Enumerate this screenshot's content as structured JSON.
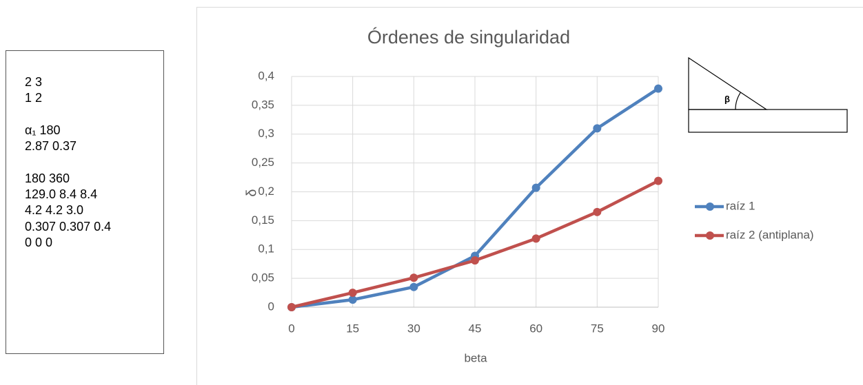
{
  "text_box": {
    "lines": [
      "2 3",
      "1 2",
      "α₁ 180",
      "2.87 0.37",
      "180 360",
      "129.0 8.4 8.4",
      "4.2 4.2 3.0",
      "0.307 0.307 0.4",
      "0 0 0"
    ]
  },
  "chart_data": {
    "type": "line",
    "title": "Órdenes de singularidad",
    "x_label": "beta",
    "y_label": "δ",
    "x": [
      0,
      15,
      30,
      45,
      60,
      75,
      90
    ],
    "series": [
      {
        "name": "raíz 1",
        "color": "#4f81bd",
        "values": [
          0,
          0.013,
          0.035,
          0.089,
          0.207,
          0.31,
          0.379
        ]
      },
      {
        "name": "raíz 2 (antiplana)",
        "color": "#c0504d",
        "values": [
          0,
          0.025,
          0.051,
          0.081,
          0.119,
          0.165,
          0.219
        ]
      }
    ],
    "xlim": [
      0,
      90
    ],
    "xticks": [
      0,
      15,
      30,
      45,
      60,
      75,
      90
    ],
    "ylim": [
      0,
      0.4
    ],
    "yticks": [
      0,
      {
        "value": 0.05,
        "label": "0,05"
      },
      {
        "value": 0.1,
        "label": "0,1"
      },
      {
        "value": 0.15,
        "label": "0,15"
      },
      {
        "value": 0.2,
        "label": "0,2"
      },
      {
        "value": 0.25,
        "label": "0,25"
      },
      {
        "value": 0.3,
        "label": "0,3"
      },
      {
        "value": 0.35,
        "label": "0,35"
      },
      {
        "value": 0.4,
        "label": "0,4"
      }
    ],
    "grid": true,
    "legend": "right"
  },
  "inset": {
    "label": "β"
  }
}
